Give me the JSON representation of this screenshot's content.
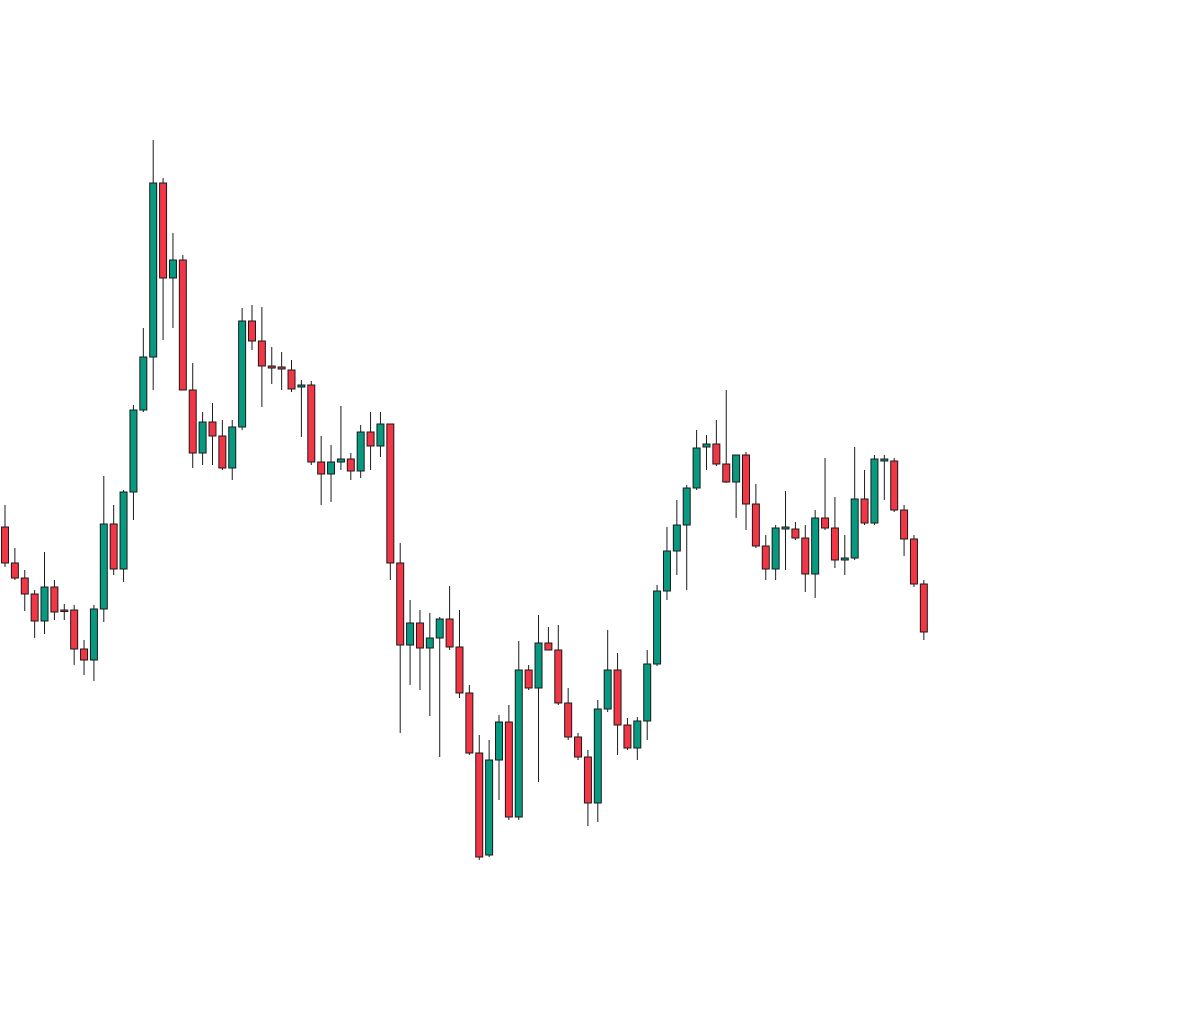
{
  "chart_data": {
    "type": "candlestick",
    "open": [
      502,
      466,
      451,
      435,
      408,
      442,
      419,
      419,
      380,
      369,
      420,
      505,
      460,
      537,
      619,
      672,
      846,
      751,
      769,
      639,
      576,
      607,
      593,
      561,
      602,
      708,
      688,
      663,
      662,
      659,
      642,
      644,
      567,
      555,
      567,
      570,
      558,
      597,
      583,
      605,
      466,
      384,
      406,
      381,
      391,
      410,
      382,
      336,
      276,
      174,
      269,
      307,
      212,
      359,
      341,
      386,
      379,
      326,
      292,
      272,
      226,
      320,
      359,
      304,
      281,
      308,
      365,
      438,
      478,
      504,
      541,
      582,
      585,
      565,
      547,
      574,
      525,
      483,
      460,
      500,
      500,
      491,
      455,
      511,
      501,
      469,
      471,
      530,
      506,
      568,
      568,
      519,
      490,
      445
    ],
    "high": [
      524,
      481,
      459,
      439,
      477,
      449,
      425,
      424,
      389,
      424,
      553,
      524,
      539,
      624,
      701,
      889,
      851,
      796,
      774,
      666,
      617,
      626,
      609,
      609,
      721,
      724,
      722,
      682,
      677,
      669,
      649,
      648,
      593,
      584,
      623,
      576,
      604,
      617,
      617,
      605,
      486,
      429,
      419,
      416,
      412,
      443,
      419,
      344,
      294,
      289,
      314,
      324,
      388,
      364,
      414,
      402,
      404,
      341,
      296,
      279,
      329,
      399,
      376,
      311,
      312,
      379,
      444,
      502,
      529,
      544,
      599,
      594,
      609,
      639,
      574,
      577,
      545,
      494,
      504,
      538,
      507,
      504,
      519,
      571,
      532,
      494,
      582,
      559,
      574,
      574,
      571,
      524,
      494,
      449
    ],
    "low": [
      462,
      449,
      418,
      391,
      395,
      409,
      409,
      364,
      354,
      348,
      407,
      454,
      447,
      509,
      617,
      639,
      689,
      701,
      639,
      561,
      564,
      564,
      559,
      549,
      599,
      679,
      622,
      645,
      639,
      637,
      592,
      564,
      524,
      527,
      559,
      549,
      551,
      559,
      572,
      449,
      296,
      344,
      339,
      313,
      272,
      379,
      331,
      274,
      169,
      172,
      229,
      209,
      209,
      339,
      247,
      379,
      324,
      289,
      269,
      203,
      207,
      317,
      274,
      279,
      269,
      289,
      363,
      429,
      454,
      439,
      539,
      559,
      563,
      546,
      511,
      499,
      481,
      449,
      449,
      459,
      489,
      437,
      431,
      499,
      461,
      454,
      469,
      504,
      504,
      529,
      517,
      473,
      442,
      389
    ],
    "close": [
      466,
      451,
      435,
      408,
      442,
      417,
      418,
      380,
      369,
      420,
      505,
      460,
      537,
      619,
      672,
      846,
      751,
      769,
      639,
      576,
      607,
      593,
      561,
      602,
      708,
      688,
      663,
      661,
      660,
      640,
      644,
      567,
      555,
      567,
      570,
      558,
      597,
      583,
      605,
      466,
      384,
      406,
      381,
      391,
      410,
      382,
      336,
      276,
      172,
      269,
      307,
      212,
      359,
      341,
      386,
      379,
      326,
      292,
      272,
      226,
      320,
      359,
      304,
      281,
      308,
      365,
      438,
      478,
      504,
      541,
      581,
      585,
      565,
      547,
      574,
      525,
      483,
      460,
      501,
      502,
      491,
      455,
      511,
      501,
      469,
      471,
      530,
      506,
      570,
      570,
      519,
      490,
      445,
      397
    ],
    "up_color": "#089981",
    "down_color": "#f23645",
    "ylim": [
      0,
      1029
    ]
  }
}
